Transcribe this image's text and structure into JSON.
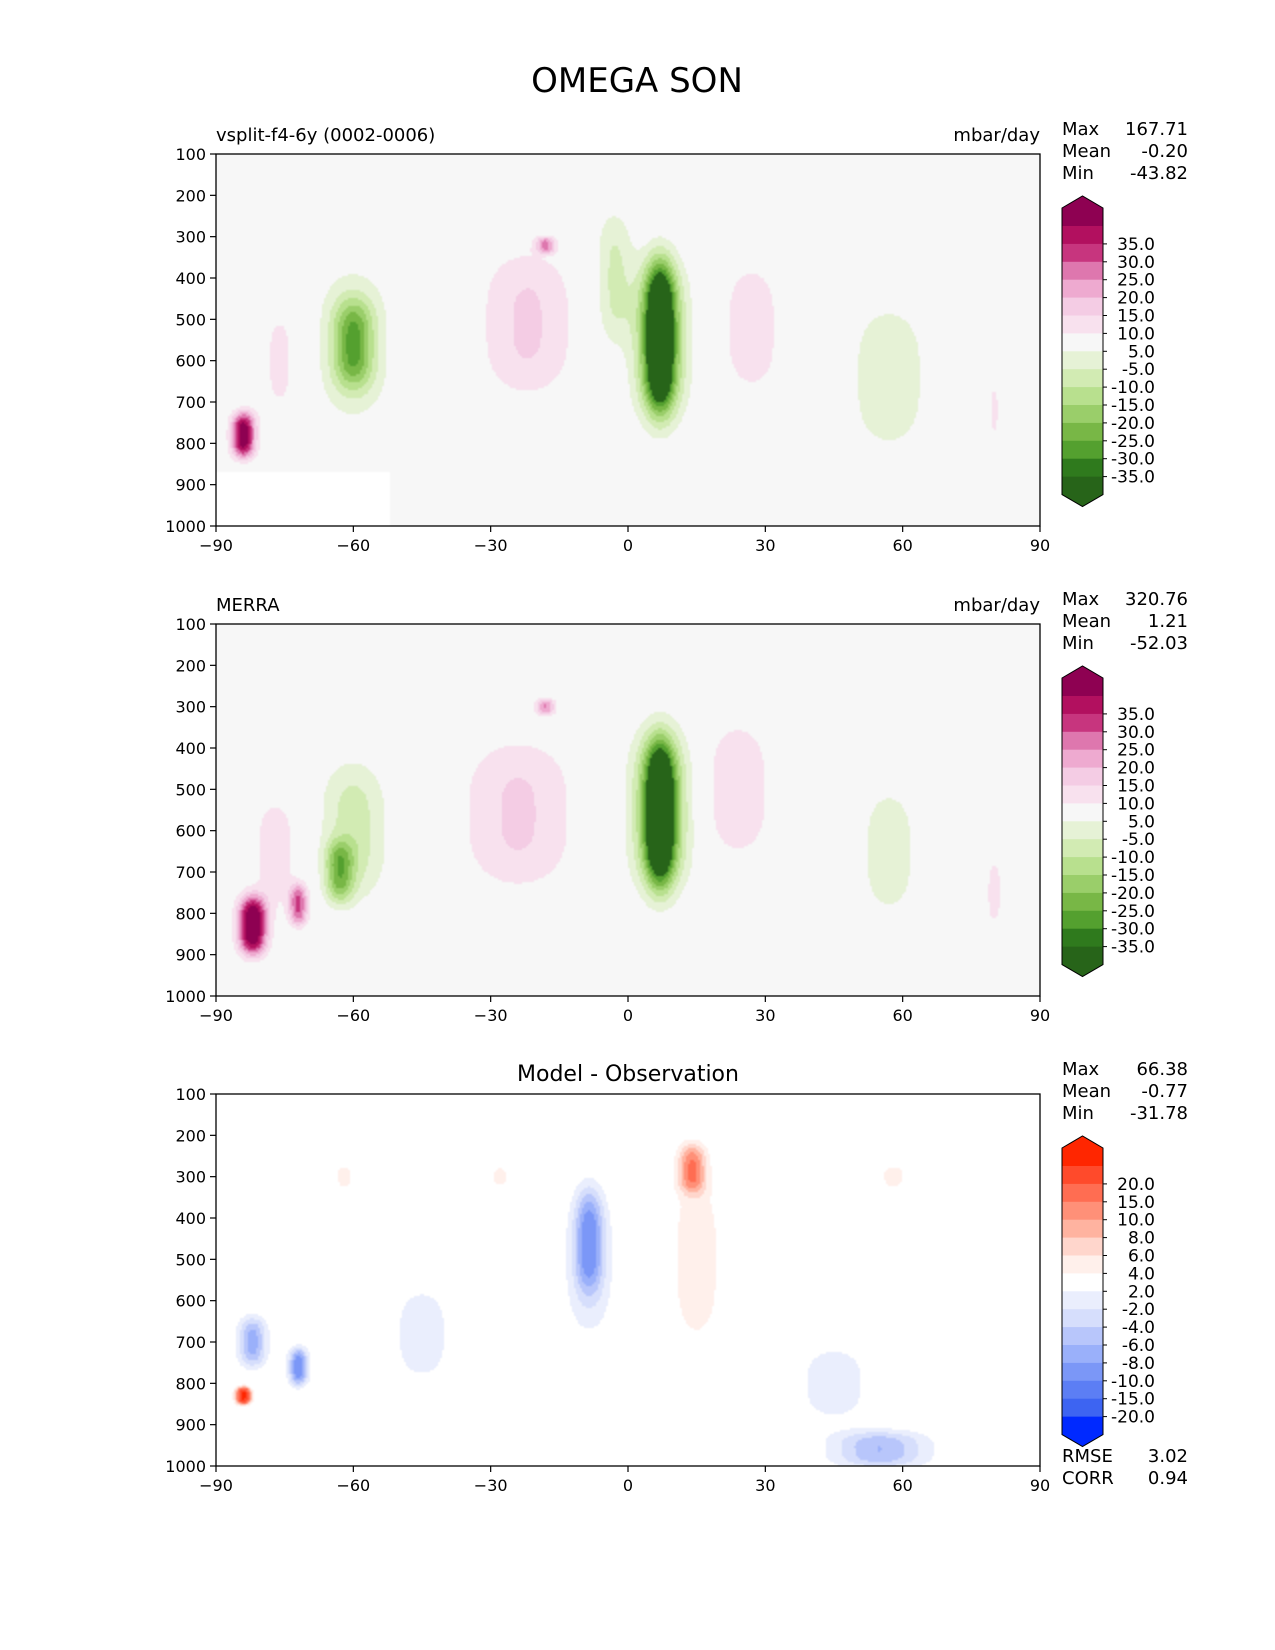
{
  "title": "OMEGA SON",
  "colors": {
    "field_cmap": [
      "#8e0152",
      "#b2105f",
      "#c7357e",
      "#de77ae",
      "#eeaad0",
      "#f4cce4",
      "#f8e1ee",
      "#f7f7f7",
      "#e6f2d6",
      "#d2ebb3",
      "#b8e08e",
      "#9ace6a",
      "#78b746",
      "#54a02f",
      "#2f7a1d",
      "#276419"
    ],
    "diff_cmap": [
      "#ff2600",
      "#ff4a2b",
      "#ff6d52",
      "#ff9078",
      "#ffb3a0",
      "#ffd6cc",
      "#fff0eb",
      "#ffffff",
      "#eaeefd",
      "#d6defc",
      "#b8c6fb",
      "#9ab0fa",
      "#7b97f7",
      "#5c7ef4",
      "#3d64f2",
      "#0029ff"
    ]
  },
  "chart_data": [
    {
      "type": "contour",
      "left_title": "vsplit-f4-6y (0002-0006)",
      "right_title": "mbar/day",
      "stats": [
        {
          "label": "Max",
          "value": "167.71"
        },
        {
          "label": "Mean",
          "value": "-0.20"
        },
        {
          "label": "Min",
          "value": "-43.82"
        }
      ],
      "colorbar_ticks": [
        "35.0",
        "30.0",
        "25.0",
        "20.0",
        "15.0",
        "10.0",
        "5.0",
        "-5.0",
        "-10.0",
        "-15.0",
        "-20.0",
        "-25.0",
        "-30.0",
        "-35.0"
      ],
      "x_ticks": [
        "−90",
        "−60",
        "−30",
        "0",
        "30",
        "60",
        "90"
      ],
      "y_ticks": [
        "100",
        "200",
        "300",
        "400",
        "500",
        "600",
        "700",
        "800",
        "900",
        "1000"
      ],
      "xlim": [
        -90,
        90
      ],
      "ylim": [
        1000,
        100
      ],
      "features": [
        {
          "lat": 7,
          "p": 540,
          "w": 3,
          "h": 350,
          "v": -40
        },
        {
          "lat": 7,
          "p": 550,
          "w": 5.5,
          "h": 380,
          "v": -26
        },
        {
          "lat": -3,
          "p": 400,
          "w": 4,
          "h": 320,
          "v": -11
        },
        {
          "lat": -60,
          "p": 560,
          "w": 7,
          "h": 340,
          "v": -13
        },
        {
          "lat": -60,
          "p": 560,
          "w": 4,
          "h": 200,
          "v": -20
        },
        {
          "lat": 57,
          "p": 640,
          "w": 8,
          "h": 340,
          "v": -10
        },
        {
          "lat": -22,
          "p": 510,
          "w": 10,
          "h": 350,
          "v": 11
        },
        {
          "lat": -18,
          "p": 320,
          "w": 2,
          "h": 40,
          "v": 20
        },
        {
          "lat": 27,
          "p": 520,
          "w": 7,
          "h": 330,
          "v": 8
        },
        {
          "lat": -84,
          "p": 780,
          "w": 2.5,
          "h": 110,
          "v": 40
        },
        {
          "lat": -76,
          "p": 600,
          "w": 5,
          "h": 300,
          "v": 6
        },
        {
          "lat": 80,
          "p": 720,
          "w": 1.5,
          "h": 160,
          "v": 6
        }
      ],
      "mask_lat": -52,
      "mask_p": 870
    },
    {
      "type": "contour",
      "left_title": "MERRA",
      "right_title": "mbar/day",
      "stats": [
        {
          "label": "Max",
          "value": "320.76"
        },
        {
          "label": "Mean",
          "value": "1.21"
        },
        {
          "label": "Min",
          "value": "-52.03"
        }
      ],
      "colorbar_ticks": [
        "35.0",
        "30.0",
        "25.0",
        "20.0",
        "15.0",
        "10.0",
        "5.0",
        "-5.0",
        "-10.0",
        "-15.0",
        "-20.0",
        "-25.0",
        "-30.0",
        "-35.0"
      ],
      "x_ticks": [
        "−90",
        "−60",
        "−30",
        "0",
        "30",
        "60",
        "90"
      ],
      "y_ticks": [
        "100",
        "200",
        "300",
        "400",
        "500",
        "600",
        "700",
        "800",
        "900",
        "1000"
      ],
      "xlim": [
        -90,
        90
      ],
      "ylim": [
        1000,
        100
      ],
      "features": [
        {
          "lat": 7,
          "p": 560,
          "w": 3,
          "h": 340,
          "v": -42
        },
        {
          "lat": 7,
          "p": 550,
          "w": 6,
          "h": 380,
          "v": -26
        },
        {
          "lat": -60,
          "p": 600,
          "w": 7,
          "h": 330,
          "v": -13
        },
        {
          "lat": -63,
          "p": 700,
          "w": 3,
          "h": 150,
          "v": -22
        },
        {
          "lat": 57,
          "p": 650,
          "w": 6,
          "h": 300,
          "v": -9
        },
        {
          "lat": -24,
          "p": 560,
          "w": 12,
          "h": 360,
          "v": 11
        },
        {
          "lat": -18,
          "p": 300,
          "w": 2,
          "h": 40,
          "v": 20
        },
        {
          "lat": 24,
          "p": 500,
          "w": 7,
          "h": 320,
          "v": 10
        },
        {
          "lat": -82,
          "p": 830,
          "w": 3,
          "h": 140,
          "v": 45
        },
        {
          "lat": -72,
          "p": 780,
          "w": 2,
          "h": 100,
          "v": 25
        },
        {
          "lat": -77,
          "p": 650,
          "w": 6,
          "h": 300,
          "v": 7
        },
        {
          "lat": 80,
          "p": 750,
          "w": 2,
          "h": 180,
          "v": 7
        }
      ],
      "mask_lat": null,
      "mask_p": null
    },
    {
      "type": "contour",
      "left_title": "",
      "center_title": "Model - Observation",
      "right_title": "",
      "stats": [
        {
          "label": "Max",
          "value": "66.38"
        },
        {
          "label": "Mean",
          "value": "-0.77"
        },
        {
          "label": "Min",
          "value": "-31.78"
        }
      ],
      "colorbar_ticks": [
        "20.0",
        "15.0",
        "10.0",
        "8.0",
        "6.0",
        "4.0",
        "2.0",
        "-2.0",
        "-4.0",
        "-6.0",
        "-8.0",
        "-10.0",
        "-15.0",
        "-20.0"
      ],
      "extra_stats": [
        {
          "label": "RMSE",
          "value": "3.02"
        },
        {
          "label": "CORR",
          "value": "0.94"
        }
      ],
      "x_ticks": [
        "−90",
        "−60",
        "−30",
        "0",
        "30",
        "60",
        "90"
      ],
      "y_ticks": [
        "100",
        "200",
        "300",
        "400",
        "500",
        "600",
        "700",
        "800",
        "900",
        "1000"
      ],
      "xlim": [
        -90,
        90
      ],
      "ylim": [
        1000,
        100
      ],
      "features": [
        {
          "lat": -8.5,
          "p": 450,
          "w": 3,
          "h": 250,
          "v": -9
        },
        {
          "lat": -8.5,
          "p": 520,
          "w": 5,
          "h": 330,
          "v": -4
        },
        {
          "lat": 14,
          "p": 280,
          "w": 3,
          "h": 120,
          "v": 10
        },
        {
          "lat": 15,
          "p": 500,
          "w": 5,
          "h": 380,
          "v": 4
        },
        {
          "lat": -82,
          "p": 700,
          "w": 3,
          "h": 120,
          "v": -9
        },
        {
          "lat": -72,
          "p": 760,
          "w": 2,
          "h": 90,
          "v": -12
        },
        {
          "lat": -84,
          "p": 830,
          "w": 1.5,
          "h": 40,
          "v": 22
        },
        {
          "lat": -45,
          "p": 680,
          "w": 10,
          "h": 300,
          "v": -2.5
        },
        {
          "lat": 55,
          "p": 960,
          "w": 10,
          "h": 90,
          "v": -8
        },
        {
          "lat": 45,
          "p": 800,
          "w": 9,
          "h": 200,
          "v": -3
        },
        {
          "lat": 58,
          "p": 300,
          "w": 3,
          "h": 60,
          "v": 3
        },
        {
          "lat": -62,
          "p": 300,
          "w": 2,
          "h": 60,
          "v": 3
        },
        {
          "lat": -28,
          "p": 300,
          "w": 2,
          "h": 50,
          "v": 3
        }
      ],
      "mask_lat": -52,
      "mask_p": 870
    }
  ]
}
